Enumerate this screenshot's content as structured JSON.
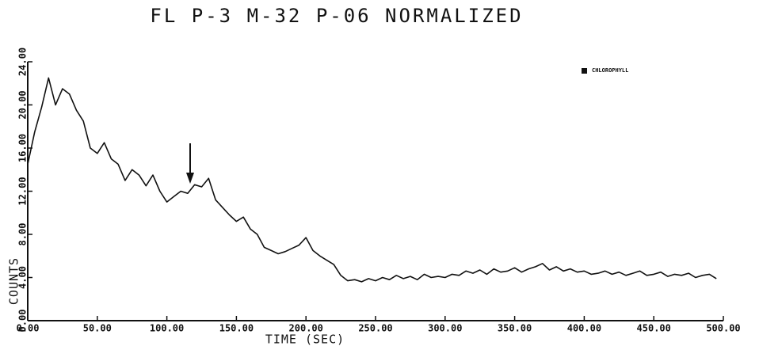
{
  "chart_data": {
    "type": "line",
    "title": "FL P-3 M-32 P-06 NORMALIZED",
    "xlabel": "TIME (SEC)",
    "ylabel": "COUNTS",
    "xlim": [
      0,
      500
    ],
    "ylim": [
      0,
      24
    ],
    "xticks": [
      {
        "value": 0,
        "label": "0.00"
      },
      {
        "value": 50,
        "label": "50.00"
      },
      {
        "value": 100,
        "label": "100.00"
      },
      {
        "value": 150,
        "label": "150.00"
      },
      {
        "value": 200,
        "label": "200.00"
      },
      {
        "value": 250,
        "label": "250.00"
      },
      {
        "value": 300,
        "label": "300.00"
      },
      {
        "value": 350,
        "label": "350.00"
      },
      {
        "value": 400,
        "label": "400.00"
      },
      {
        "value": 450,
        "label": "450.00"
      },
      {
        "value": 500,
        "label": "500.00"
      }
    ],
    "yticks": [
      {
        "value": 0,
        "label": "0.00"
      },
      {
        "value": 4,
        "label": "4.00"
      },
      {
        "value": 8,
        "label": "8.00"
      },
      {
        "value": 12,
        "label": "12.00"
      },
      {
        "value": 16,
        "label": "16.00"
      },
      {
        "value": 20,
        "label": "20.00"
      },
      {
        "value": 24,
        "label": "24.00"
      }
    ],
    "legend": "upper right",
    "x": [
      0,
      5,
      10,
      15,
      20,
      25,
      30,
      35,
      40,
      45,
      50,
      55,
      60,
      65,
      70,
      75,
      80,
      85,
      90,
      95,
      100,
      105,
      110,
      115,
      120,
      125,
      130,
      135,
      140,
      145,
      150,
      155,
      160,
      165,
      170,
      175,
      180,
      185,
      190,
      195,
      200,
      205,
      210,
      215,
      220,
      225,
      230,
      235,
      240,
      245,
      250,
      255,
      260,
      265,
      270,
      275,
      280,
      285,
      290,
      295,
      300,
      305,
      310,
      315,
      320,
      325,
      330,
      335,
      340,
      345,
      350,
      355,
      360,
      365,
      370,
      375,
      380,
      385,
      390,
      395,
      400,
      405,
      410,
      415,
      420,
      425,
      430,
      435,
      440,
      445,
      450,
      455,
      460,
      465,
      470,
      475,
      480,
      485,
      490,
      495
    ],
    "series": [
      {
        "name": "CHLOROPHYLL",
        "color": "#111111",
        "values": [
          14.5,
          17.5,
          19.8,
          22.5,
          20,
          21.5,
          21,
          19.5,
          18.5,
          16,
          15.5,
          16.5,
          15,
          14.5,
          13,
          14,
          13.5,
          12.5,
          13.5,
          12,
          11,
          11.5,
          12,
          11.8,
          12.6,
          12.4,
          13.2,
          11.2,
          10.5,
          9.8,
          9.2,
          9.6,
          8.5,
          8,
          6.8,
          6.5,
          6.2,
          6.4,
          6.7,
          7,
          7.7,
          6.5,
          6,
          5.6,
          5.2,
          4.2,
          3.7,
          3.8,
          3.6,
          3.9,
          3.7,
          4,
          3.8,
          4.2,
          3.9,
          4.1,
          3.8,
          4.3,
          4,
          4.1,
          4,
          4.3,
          4.2,
          4.6,
          4.4,
          4.7,
          4.3,
          4.8,
          4.5,
          4.6,
          4.9,
          4.5,
          4.8,
          5,
          5.3,
          4.7,
          5,
          4.6,
          4.8,
          4.5,
          4.6,
          4.3,
          4.4,
          4.6,
          4.3,
          4.5,
          4.2,
          4.4,
          4.6,
          4.2,
          4.3,
          4.5,
          4.1,
          4.3,
          4.2,
          4.4,
          4,
          4.2,
          4.3,
          3.9
        ]
      }
    ]
  }
}
